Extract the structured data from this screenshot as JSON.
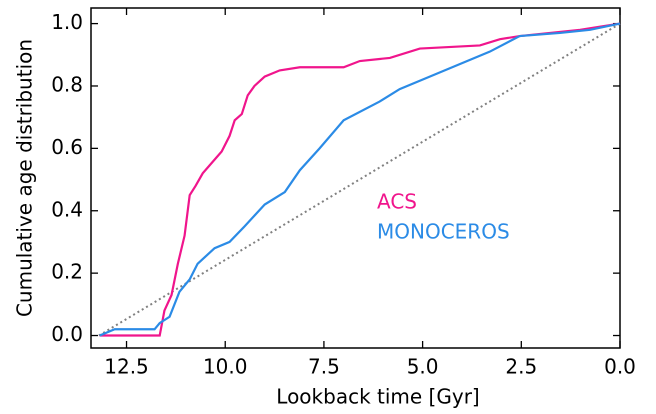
{
  "chart_data": {
    "type": "line",
    "xlabel": "Lookback time [Gyr]",
    "ylabel": "Cumulative age distribution",
    "xlim": [
      13.4,
      0
    ],
    "ylim": [
      -0.04,
      1.05
    ],
    "xticks": [
      12.5,
      {
        "value": 10,
        "label": "10.0"
      },
      7.5,
      {
        "value": 5,
        "label": "5.0"
      },
      2.5,
      {
        "value": 0,
        "label": "0.0"
      }
    ],
    "yticks": [
      {
        "value": 0,
        "label": "0.0"
      },
      0.2,
      0.4,
      0.6,
      0.8,
      {
        "value": 1,
        "label": "1.0"
      }
    ],
    "reference_line": {
      "x": [
        13.2,
        0
      ],
      "y": [
        0,
        1
      ],
      "color": "#808080"
    },
    "series": [
      {
        "name": "ACS",
        "color": "#f0158c",
        "x": [
          13.18,
          11.66,
          11.54,
          11.36,
          11.2,
          11.03,
          10.9,
          10.75,
          10.57,
          10.09,
          9.89,
          9.76,
          9.58,
          9.43,
          9.26,
          9.0,
          8.62,
          8.11,
          7.0,
          6.59,
          5.83,
          5.07,
          3.55,
          3.04,
          2.54,
          1.01,
          0.51,
          0
        ],
        "values": [
          0,
          0,
          0.08,
          0.13,
          0.23,
          0.32,
          0.45,
          0.48,
          0.52,
          0.59,
          0.64,
          0.69,
          0.71,
          0.77,
          0.8,
          0.83,
          0.85,
          0.86,
          0.86,
          0.88,
          0.89,
          0.92,
          0.93,
          0.95,
          0.96,
          0.98,
          0.99,
          1.0
        ]
      },
      {
        "name": "MONOCEROS",
        "color": "#2b8be6",
        "x": [
          13.18,
          12.8,
          11.79,
          11.66,
          11.41,
          11.16,
          10.9,
          10.7,
          10.27,
          9.89,
          9.51,
          9.0,
          8.49,
          8.11,
          7.61,
          7.0,
          6.09,
          5.58,
          4.82,
          4.06,
          3.3,
          2.54,
          1.52,
          0.76,
          0
        ],
        "values": [
          0,
          0.02,
          0.02,
          0.04,
          0.06,
          0.14,
          0.18,
          0.23,
          0.28,
          0.3,
          0.35,
          0.42,
          0.46,
          0.53,
          0.6,
          0.69,
          0.75,
          0.79,
          0.83,
          0.87,
          0.91,
          0.96,
          0.97,
          0.98,
          1.0
        ]
      }
    ]
  }
}
